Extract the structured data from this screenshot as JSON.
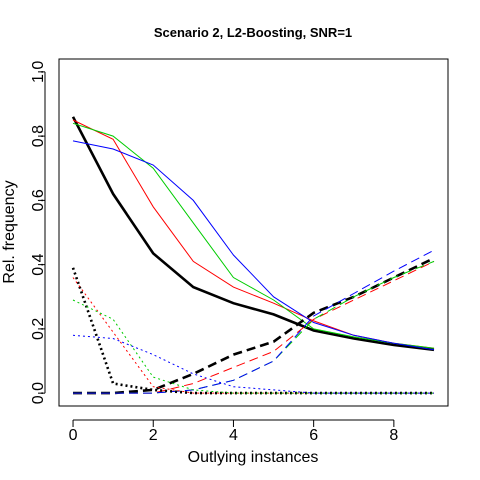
{
  "chart_data": {
    "type": "line",
    "title": "Scenario 2, L2-Boosting, SNR=1",
    "xlabel": "Outlying instances",
    "ylabel": "Rel. frequency",
    "xlim": [
      -0.35,
      9.35
    ],
    "ylim": [
      -0.04,
      1.04
    ],
    "xticks": [
      0,
      2,
      4,
      6,
      8
    ],
    "yticks": [
      0.0,
      0.2,
      0.4,
      0.6,
      0.8,
      1.0
    ],
    "xtick_labels": [
      "0",
      "2",
      "4",
      "6",
      "8"
    ],
    "ytick_labels": [
      "0.0",
      "0.2",
      "0.4",
      "0.6",
      "0.8",
      "1.0"
    ],
    "grid": false,
    "legend": "none",
    "x": [
      0,
      1,
      2,
      3,
      4,
      5,
      6,
      7,
      8,
      9
    ],
    "series": [
      {
        "color": "#000000",
        "dash": "solid",
        "width": 2.6,
        "values": [
          0.86,
          0.62,
          0.435,
          0.33,
          0.28,
          0.245,
          0.195,
          0.17,
          0.15,
          0.135
        ]
      },
      {
        "color": "#ff0000",
        "dash": "solid",
        "width": 1,
        "values": [
          0.85,
          0.79,
          0.58,
          0.41,
          0.33,
          0.28,
          0.225,
          0.18,
          0.155,
          0.14
        ]
      },
      {
        "color": "#00cc00",
        "dash": "solid",
        "width": 1,
        "values": [
          0.84,
          0.8,
          0.7,
          0.53,
          0.36,
          0.29,
          0.2,
          0.175,
          0.155,
          0.14
        ]
      },
      {
        "color": "#0000ff",
        "dash": "solid",
        "width": 1,
        "values": [
          0.785,
          0.76,
          0.71,
          0.6,
          0.43,
          0.3,
          0.22,
          0.18,
          0.155,
          0.135
        ]
      },
      {
        "color": "#000000",
        "dash": "longdash",
        "width": 2.6,
        "values": [
          0.0,
          0.0,
          0.01,
          0.06,
          0.12,
          0.16,
          0.25,
          0.3,
          0.36,
          0.42
        ]
      },
      {
        "color": "#ff0000",
        "dash": "longdash",
        "width": 1,
        "values": [
          0.0,
          0.0,
          0.0,
          0.03,
          0.08,
          0.13,
          0.23,
          0.29,
          0.35,
          0.41
        ]
      },
      {
        "color": "#00cc00",
        "dash": "longdash",
        "width": 1,
        "values": [
          0.0,
          0.0,
          0.0,
          0.01,
          0.04,
          0.1,
          0.23,
          0.3,
          0.36,
          0.41
        ]
      },
      {
        "color": "#0000ff",
        "dash": "longdash",
        "width": 1,
        "values": [
          0.0,
          0.0,
          0.0,
          0.01,
          0.04,
          0.1,
          0.24,
          0.31,
          0.38,
          0.445
        ]
      },
      {
        "color": "#000000",
        "dash": "dotted",
        "width": 2.6,
        "values": [
          0.39,
          0.03,
          0.01,
          0.0,
          0.0,
          0.0,
          0.0,
          0.0,
          0.0,
          0.0
        ]
      },
      {
        "color": "#ff0000",
        "dash": "dotted",
        "width": 1,
        "values": [
          0.36,
          0.19,
          0.02,
          0.0,
          0.0,
          0.0,
          0.0,
          0.0,
          0.0,
          0.0
        ]
      },
      {
        "color": "#00cc00",
        "dash": "dotted",
        "width": 1,
        "values": [
          0.29,
          0.23,
          0.05,
          0.01,
          0.0,
          0.0,
          0.0,
          0.0,
          0.0,
          0.0
        ]
      },
      {
        "color": "#0000ff",
        "dash": "dotted",
        "width": 1,
        "values": [
          0.18,
          0.17,
          0.12,
          0.06,
          0.02,
          0.01,
          0.0,
          0.0,
          0.0,
          0.0
        ]
      }
    ]
  }
}
